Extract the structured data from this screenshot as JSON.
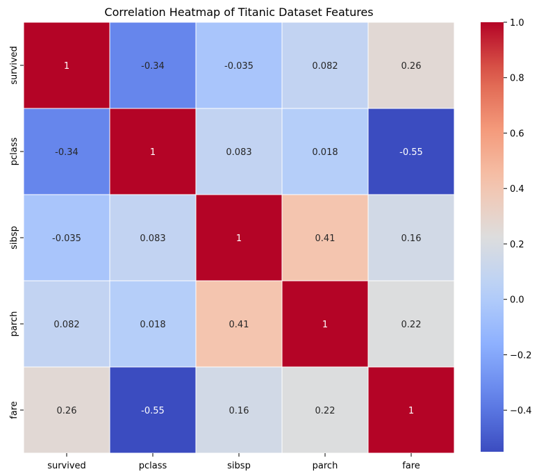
{
  "chart_data": {
    "type": "heatmap",
    "title": "Correlation Heatmap of Titanic Dataset Features",
    "x_categories": [
      "survived",
      "pclass",
      "sibsp",
      "parch",
      "fare"
    ],
    "y_categories": [
      "survived",
      "pclass",
      "sibsp",
      "parch",
      "fare"
    ],
    "values": [
      [
        1,
        -0.34,
        -0.035,
        0.082,
        0.26
      ],
      [
        -0.34,
        1,
        0.083,
        0.018,
        -0.55
      ],
      [
        -0.035,
        0.083,
        1,
        0.41,
        0.16
      ],
      [
        0.082,
        0.018,
        0.41,
        1,
        0.22
      ],
      [
        0.26,
        -0.55,
        0.16,
        0.22,
        1
      ]
    ],
    "value_labels": [
      [
        "1",
        "-0.34",
        "-0.035",
        "0.082",
        "0.26"
      ],
      [
        "-0.34",
        "1",
        "0.083",
        "0.018",
        "-0.55"
      ],
      [
        "-0.035",
        "0.083",
        "1",
        "0.41",
        "0.16"
      ],
      [
        "0.082",
        "0.018",
        "0.41",
        "1",
        "0.22"
      ],
      [
        "0.26",
        "-0.55",
        "0.16",
        "0.22",
        "1"
      ]
    ],
    "colormap": "coolwarm",
    "colorbar": {
      "min": -0.55,
      "max": 1.0,
      "ticks": [
        -0.4,
        -0.2,
        0.0,
        0.2,
        0.4,
        0.6,
        0.8,
        1.0
      ],
      "tick_labels": [
        "−0.4",
        "−0.2",
        "0.0",
        "0.2",
        "0.4",
        "0.6",
        "0.8",
        "1.0"
      ]
    }
  }
}
